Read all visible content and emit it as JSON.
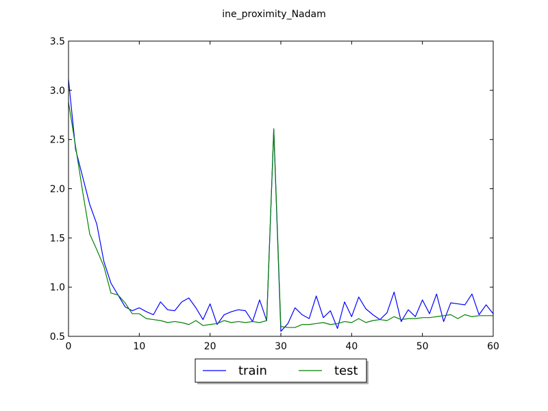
{
  "chart_data": {
    "type": "line",
    "title": "ine_proximity_Nadam",
    "xlabel": "",
    "ylabel": "",
    "xlim": [
      0,
      60
    ],
    "ylim": [
      0.5,
      3.5
    ],
    "xticks": [
      "0",
      "10",
      "20",
      "30",
      "40",
      "50",
      "60"
    ],
    "yticks": [
      "0.5",
      "1.0",
      "1.5",
      "2.0",
      "2.5",
      "3.0",
      "3.5"
    ],
    "grid": false,
    "legend": "bottom-center, outside plot",
    "x": [
      0,
      1,
      2,
      3,
      4,
      5,
      6,
      7,
      8,
      9,
      10,
      11,
      12,
      13,
      14,
      15,
      16,
      17,
      18,
      19,
      20,
      21,
      22,
      23,
      24,
      25,
      26,
      27,
      28,
      29,
      30,
      31,
      32,
      33,
      34,
      35,
      36,
      37,
      38,
      39,
      40,
      41,
      42,
      43,
      44,
      45,
      46,
      47,
      48,
      49,
      50,
      51,
      52,
      53,
      54,
      55,
      56,
      57,
      58,
      59,
      60
    ],
    "series": [
      {
        "name": "train",
        "color": "#0000ff",
        "values": [
          3.11,
          2.4,
          2.12,
          1.84,
          1.64,
          1.26,
          1.04,
          0.92,
          0.8,
          0.76,
          0.79,
          0.75,
          0.72,
          0.85,
          0.77,
          0.76,
          0.85,
          0.89,
          0.79,
          0.67,
          0.83,
          0.62,
          0.72,
          0.75,
          0.77,
          0.76,
          0.65,
          0.87,
          0.66,
          2.6,
          0.55,
          0.63,
          0.79,
          0.72,
          0.68,
          0.91,
          0.69,
          0.76,
          0.58,
          0.85,
          0.7,
          0.9,
          0.78,
          0.72,
          0.67,
          0.74,
          0.95,
          0.65,
          0.77,
          0.7,
          0.87,
          0.73,
          0.93,
          0.65,
          0.84,
          0.83,
          0.82,
          0.93,
          0.72,
          0.82,
          0.73
        ]
      },
      {
        "name": "test",
        "color": "#008000",
        "values": [
          2.88,
          2.43,
          1.97,
          1.54,
          1.38,
          1.21,
          0.94,
          0.92,
          0.84,
          0.73,
          0.73,
          0.68,
          0.67,
          0.66,
          0.64,
          0.65,
          0.64,
          0.62,
          0.66,
          0.61,
          0.62,
          0.63,
          0.66,
          0.64,
          0.65,
          0.64,
          0.65,
          0.64,
          0.66,
          2.61,
          0.6,
          0.59,
          0.59,
          0.62,
          0.62,
          0.63,
          0.64,
          0.62,
          0.63,
          0.65,
          0.64,
          0.68,
          0.64,
          0.66,
          0.67,
          0.66,
          0.7,
          0.67,
          0.68,
          0.68,
          0.69,
          0.69,
          0.7,
          0.71,
          0.72,
          0.68,
          0.72,
          0.7,
          0.71,
          0.71,
          0.71
        ]
      }
    ]
  }
}
